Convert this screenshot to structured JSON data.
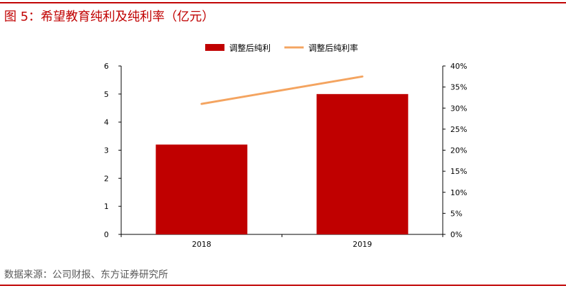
{
  "header": {
    "title": "图 5：希望教育纯利及纯利率（亿元）"
  },
  "footer": {
    "source": "数据来源：公司财报、东方证券研究所"
  },
  "colors": {
    "accent": "#c00000",
    "bar": "#c00000",
    "line": "#f4a460",
    "axis": "#000000"
  },
  "chart_data": {
    "type": "bar",
    "categories": [
      "2018",
      "2019"
    ],
    "series": [
      {
        "name": "调整后纯利",
        "type": "bar",
        "axis": "left",
        "values": [
          3.2,
          5.0
        ]
      },
      {
        "name": "调整后纯利率",
        "type": "line",
        "axis": "right",
        "values": [
          31,
          37.5
        ]
      }
    ],
    "y_left": {
      "range": [
        0,
        6
      ],
      "ticks": [
        "0",
        "1",
        "2",
        "3",
        "4",
        "5",
        "6"
      ]
    },
    "y_right": {
      "range": [
        0,
        40
      ],
      "ticks": [
        "0%",
        "5%",
        "10%",
        "15%",
        "20%",
        "25%",
        "30%",
        "35%",
        "40%"
      ]
    },
    "grid": false,
    "legend_position": "top-center"
  }
}
